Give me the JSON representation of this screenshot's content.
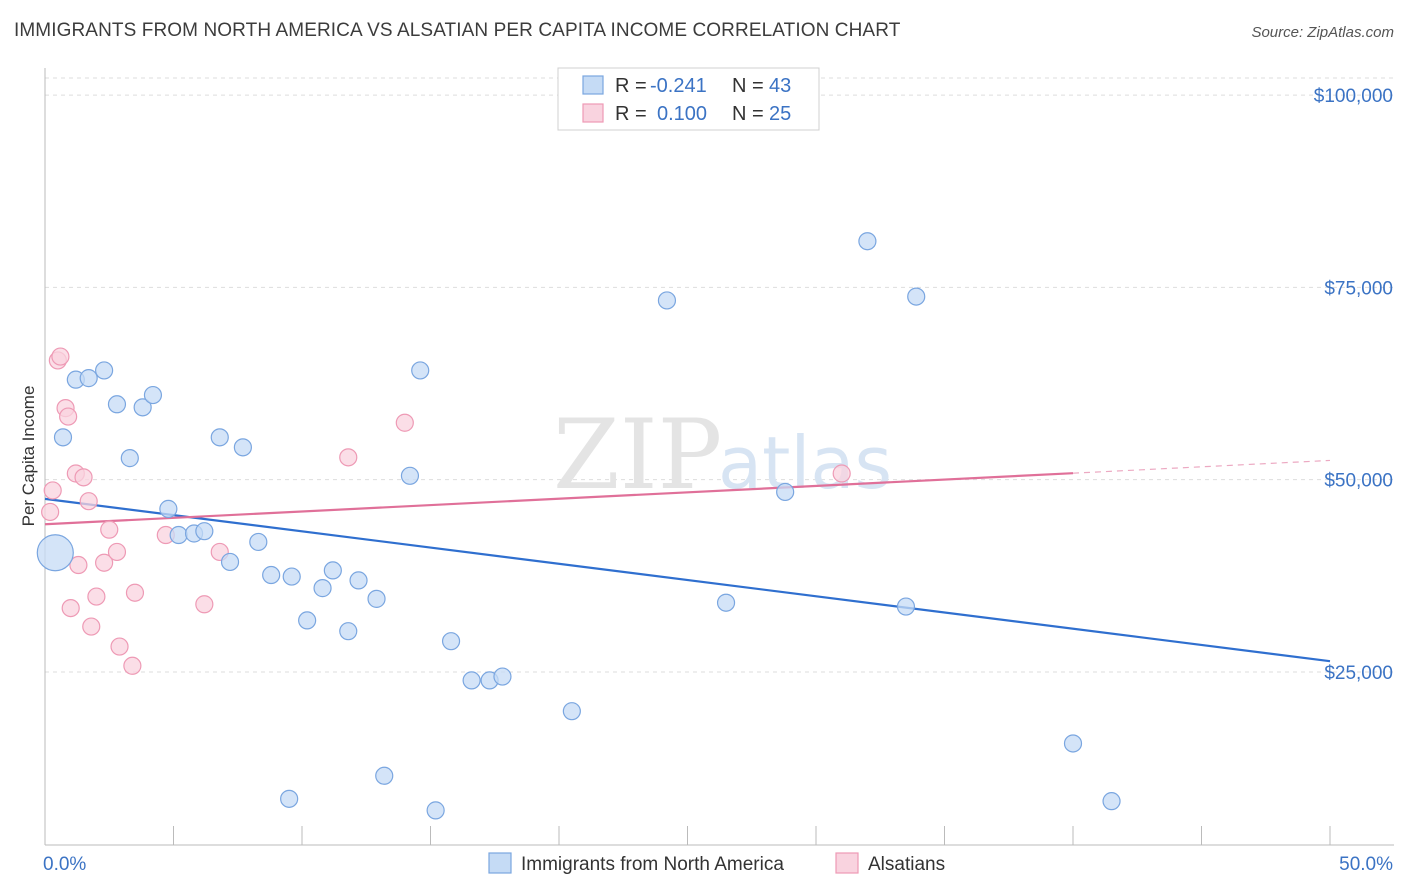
{
  "header": {
    "title": "IMMIGRANTS FROM NORTH AMERICA VS ALSATIAN PER CAPITA INCOME CORRELATION CHART",
    "source": "Source: ZipAtlas.com"
  },
  "watermark": {
    "zip": "ZIP",
    "atlas": "atlas"
  },
  "legend_top": {
    "rows": [
      {
        "r_label": "R =",
        "r_value": "-0.241",
        "n_label": "N =",
        "n_value": "43",
        "color": "#a8c8f0"
      },
      {
        "r_label": "R =",
        "r_value": "0.100",
        "n_label": "N =",
        "n_value": "25",
        "color": "#f5b8cb"
      }
    ]
  },
  "legend_bottom": {
    "items": [
      {
        "label": "Immigrants from North America",
        "color": "#a8c8f0"
      },
      {
        "label": "Alsatians",
        "color": "#f5b8cb"
      }
    ]
  },
  "colors": {
    "blue_fill": "#c5dbf5",
    "blue_stroke": "#7aa6e0",
    "blue_line": "#2f6fcf",
    "pink_fill": "#f9d3df",
    "pink_stroke": "#ee9ab5",
    "pink_line": "#e07099",
    "tick_text": "#3b73c4",
    "grid": "#dddddd"
  },
  "chart_data": {
    "type": "scatter",
    "title": "IMMIGRANTS FROM NORTH AMERICA VS ALSATIAN PER CAPITA INCOME CORRELATION CHART",
    "xlabel": "",
    "ylabel": "Per Capita Income",
    "xlim": [
      0,
      50
    ],
    "ylim": [
      2500,
      103000
    ],
    "x_tick_labels": [
      "0.0%",
      "50.0%"
    ],
    "y_ticks": [
      25000,
      50000,
      75000,
      100000
    ],
    "y_tick_labels": [
      "$25,000",
      "$50,000",
      "$75,000",
      "$100,000"
    ],
    "grid": "horizontal dashed",
    "legend_placement": "top-center and bottom",
    "series": [
      {
        "name": "Immigrants from North America",
        "r": -0.241,
        "n": 43,
        "trend": {
          "x": [
            0,
            50
          ],
          "y": [
            47500,
            26400
          ],
          "dashed_from": null
        },
        "points": [
          {
            "x": 0.4,
            "y": 40500,
            "big": true
          },
          {
            "x": 0.7,
            "y": 55500
          },
          {
            "x": 1.2,
            "y": 63000
          },
          {
            "x": 1.7,
            "y": 63200
          },
          {
            "x": 2.3,
            "y": 64200
          },
          {
            "x": 2.8,
            "y": 59800
          },
          {
            "x": 3.3,
            "y": 52800
          },
          {
            "x": 3.8,
            "y": 59400
          },
          {
            "x": 4.2,
            "y": 61000
          },
          {
            "x": 4.8,
            "y": 46200
          },
          {
            "x": 5.2,
            "y": 42800
          },
          {
            "x": 5.8,
            "y": 43000
          },
          {
            "x": 6.2,
            "y": 43300
          },
          {
            "x": 6.8,
            "y": 55500
          },
          {
            "x": 7.2,
            "y": 39300
          },
          {
            "x": 7.7,
            "y": 54200
          },
          {
            "x": 8.3,
            "y": 41900
          },
          {
            "x": 8.8,
            "y": 37600
          },
          {
            "x": 9.5,
            "y": 8500
          },
          {
            "x": 9.6,
            "y": 37400
          },
          {
            "x": 10.2,
            "y": 31700
          },
          {
            "x": 10.8,
            "y": 35900
          },
          {
            "x": 11.2,
            "y": 38200
          },
          {
            "x": 11.8,
            "y": 30300
          },
          {
            "x": 12.2,
            "y": 36900
          },
          {
            "x": 12.9,
            "y": 34500
          },
          {
            "x": 13.2,
            "y": 11500
          },
          {
            "x": 14.2,
            "y": 50500
          },
          {
            "x": 14.6,
            "y": 64200
          },
          {
            "x": 15.2,
            "y": 7000
          },
          {
            "x": 15.8,
            "y": 29000
          },
          {
            "x": 16.6,
            "y": 23900
          },
          {
            "x": 17.3,
            "y": 23900
          },
          {
            "x": 17.8,
            "y": 24400
          },
          {
            "x": 20.5,
            "y": 19900
          },
          {
            "x": 24.2,
            "y": 73300
          },
          {
            "x": 26.5,
            "y": 34000
          },
          {
            "x": 28.8,
            "y": 48400
          },
          {
            "x": 32.0,
            "y": 81000
          },
          {
            "x": 33.5,
            "y": 33500
          },
          {
            "x": 33.9,
            "y": 73800
          },
          {
            "x": 40.0,
            "y": 15700
          },
          {
            "x": 41.5,
            "y": 8200
          }
        ]
      },
      {
        "name": "Alsatians",
        "r": 0.1,
        "n": 25,
        "trend": {
          "x": [
            0,
            50
          ],
          "y": [
            44200,
            52500
          ],
          "dashed_from": 40
        },
        "points": [
          {
            "x": 0.2,
            "y": 45800
          },
          {
            "x": 0.3,
            "y": 48600
          },
          {
            "x": 0.5,
            "y": 65500
          },
          {
            "x": 0.6,
            "y": 66000
          },
          {
            "x": 0.8,
            "y": 59300
          },
          {
            "x": 0.9,
            "y": 58200
          },
          {
            "x": 1.0,
            "y": 33300
          },
          {
            "x": 1.2,
            "y": 50800
          },
          {
            "x": 1.3,
            "y": 38900
          },
          {
            "x": 1.5,
            "y": 50300
          },
          {
            "x": 1.7,
            "y": 47200
          },
          {
            "x": 1.8,
            "y": 30900
          },
          {
            "x": 2.0,
            "y": 34800
          },
          {
            "x": 2.3,
            "y": 39200
          },
          {
            "x": 2.5,
            "y": 43500
          },
          {
            "x": 2.8,
            "y": 40600
          },
          {
            "x": 2.9,
            "y": 28300
          },
          {
            "x": 3.4,
            "y": 25800
          },
          {
            "x": 3.5,
            "y": 35300
          },
          {
            "x": 4.7,
            "y": 42800
          },
          {
            "x": 6.2,
            "y": 33800
          },
          {
            "x": 6.8,
            "y": 40600
          },
          {
            "x": 11.8,
            "y": 52900
          },
          {
            "x": 14.0,
            "y": 57400
          },
          {
            "x": 31.0,
            "y": 50800
          }
        ]
      }
    ]
  }
}
